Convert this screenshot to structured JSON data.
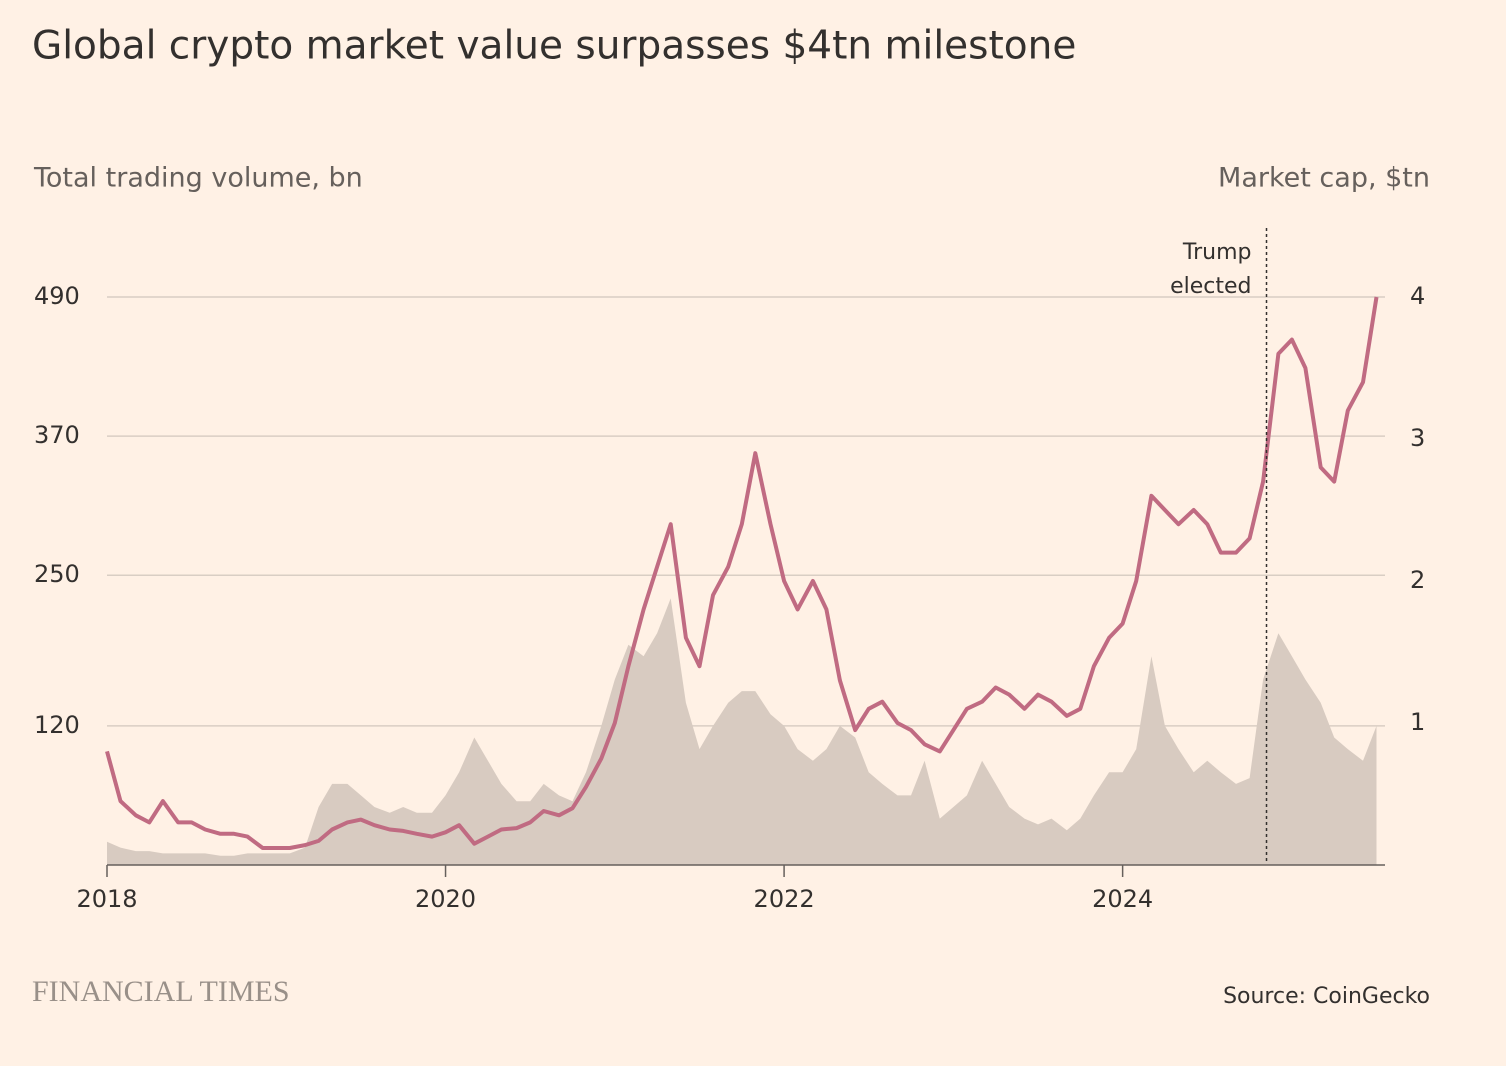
{
  "chart_data": {
    "type": "area-line",
    "title": "Global crypto market value surpasses $4tn milestone",
    "y_label": "Total trading volume, bn",
    "y2_label": "Market cap, $tn",
    "source": "Source: CoinGecko",
    "brand": "FINANCIAL TIMES",
    "x": [
      2018.0,
      2018.08,
      2018.17,
      2018.25,
      2018.33,
      2018.42,
      2018.5,
      2018.58,
      2018.67,
      2018.75,
      2018.83,
      2018.92,
      2019.0,
      2019.08,
      2019.17,
      2019.25,
      2019.33,
      2019.42,
      2019.5,
      2019.58,
      2019.67,
      2019.75,
      2019.83,
      2019.92,
      2020.0,
      2020.08,
      2020.17,
      2020.25,
      2020.33,
      2020.42,
      2020.5,
      2020.58,
      2020.67,
      2020.75,
      2020.83,
      2020.92,
      2021.0,
      2021.08,
      2021.17,
      2021.25,
      2021.33,
      2021.42,
      2021.5,
      2021.58,
      2021.67,
      2021.75,
      2021.83,
      2021.92,
      2022.0,
      2022.08,
      2022.17,
      2022.25,
      2022.33,
      2022.42,
      2022.5,
      2022.58,
      2022.67,
      2022.75,
      2022.83,
      2022.92,
      2023.0,
      2023.08,
      2023.17,
      2023.25,
      2023.33,
      2023.42,
      2023.5,
      2023.58,
      2023.67,
      2023.75,
      2023.83,
      2023.92,
      2024.0,
      2024.08,
      2024.17,
      2024.25,
      2024.33,
      2024.42,
      2024.5,
      2024.58,
      2024.67,
      2024.75,
      2024.83,
      2024.92,
      2025.0,
      2025.08,
      2025.17,
      2025.25,
      2025.33,
      2025.42,
      2025.5
    ],
    "series": [
      {
        "name": "Total trading volume",
        "color": "#d8cbc1",
        "axis": "y",
        "values": [
          20,
          15,
          12,
          12,
          10,
          10,
          10,
          10,
          8,
          8,
          10,
          10,
          10,
          10,
          15,
          50,
          70,
          70,
          60,
          50,
          45,
          50,
          45,
          45,
          60,
          80,
          110,
          90,
          70,
          55,
          55,
          70,
          60,
          55,
          80,
          120,
          160,
          190,
          180,
          200,
          230,
          140,
          100,
          120,
          140,
          150,
          150,
          130,
          120,
          100,
          90,
          100,
          120,
          110,
          80,
          70,
          60,
          60,
          90,
          40,
          50,
          60,
          90,
          70,
          50,
          40,
          35,
          40,
          30,
          40,
          60,
          80,
          80,
          100,
          180,
          120,
          100,
          80,
          90,
          80,
          70,
          75,
          160,
          200,
          180,
          160,
          140,
          110,
          100,
          90,
          120
        ]
      },
      {
        "name": "Market cap",
        "color": "#c06b82",
        "axis": "y2",
        "values": [
          0.8,
          0.45,
          0.35,
          0.3,
          0.45,
          0.3,
          0.3,
          0.25,
          0.22,
          0.22,
          0.2,
          0.12,
          0.12,
          0.12,
          0.14,
          0.17,
          0.25,
          0.3,
          0.32,
          0.28,
          0.25,
          0.24,
          0.22,
          0.2,
          0.23,
          0.28,
          0.15,
          0.2,
          0.25,
          0.26,
          0.3,
          0.38,
          0.35,
          0.4,
          0.55,
          0.75,
          1.0,
          1.4,
          1.8,
          2.1,
          2.4,
          1.6,
          1.4,
          1.9,
          2.1,
          2.4,
          2.9,
          2.4,
          2.0,
          1.8,
          2.0,
          1.8,
          1.3,
          0.95,
          1.1,
          1.15,
          1.0,
          0.95,
          0.85,
          0.8,
          0.95,
          1.1,
          1.15,
          1.25,
          1.2,
          1.1,
          1.2,
          1.15,
          1.05,
          1.1,
          1.4,
          1.6,
          1.7,
          2.0,
          2.6,
          2.5,
          2.4,
          2.5,
          2.4,
          2.2,
          2.2,
          2.3,
          2.7,
          3.6,
          3.7,
          3.5,
          2.8,
          2.7,
          3.2,
          3.4,
          4.0
        ]
      }
    ],
    "xlim": [
      2018,
      2025.55
    ],
    "xticks": [
      2018,
      2020,
      2022,
      2024
    ],
    "ylim": [
      0,
      490
    ],
    "yticks": [
      120,
      250,
      370,
      490
    ],
    "y2lim": [
      0,
      4
    ],
    "y2ticks": [
      1,
      2,
      3,
      4
    ],
    "grid": true,
    "annotations": [
      {
        "x": 2024.85,
        "text": [
          "Trump",
          "elected"
        ]
      }
    ]
  }
}
